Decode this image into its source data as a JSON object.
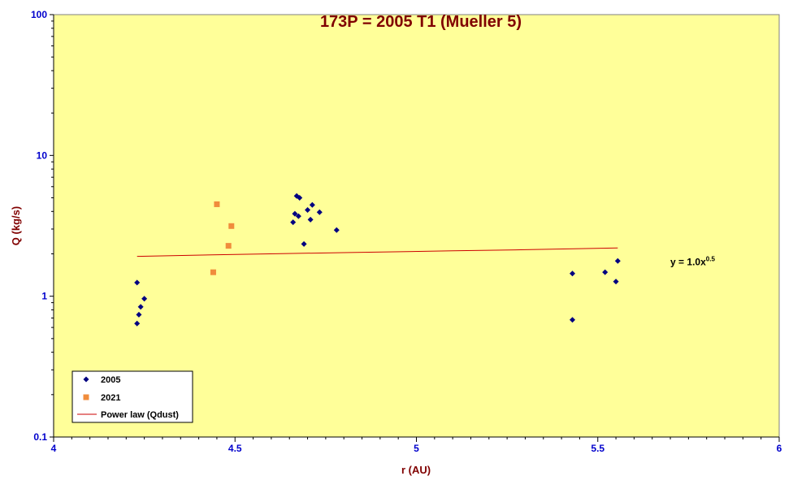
{
  "chart_data": {
    "type": "scatter",
    "title": "173P = 2005 T1 (Mueller 5)",
    "xlabel": "r (AU)",
    "ylabel": "Q (kg/s)",
    "xlim": [
      4,
      6
    ],
    "ylim": [
      0.1,
      100
    ],
    "yscale": "log",
    "x_ticks": [
      4,
      4.5,
      5,
      5.5,
      6
    ],
    "x_tick_labels": [
      "4",
      "4.5",
      "5",
      "5.5",
      "6"
    ],
    "y_ticks": [
      0.1,
      1,
      10,
      100
    ],
    "y_tick_labels": [
      "0.1",
      "1",
      "10",
      "100"
    ],
    "grid": false,
    "legend_position": "bottom-left",
    "colors": {
      "plot_background": "#ffff99",
      "outer_background": "#ffffff",
      "series_2005": "#000080",
      "series_2021": "#f08c3c",
      "power_law": "#cc0000",
      "tick_labels": "#0000cc",
      "title": "#800000"
    },
    "series": [
      {
        "name": "2005",
        "marker": "diamond",
        "points": [
          [
            4.23,
            1.25
          ],
          [
            4.23,
            0.64
          ],
          [
            4.235,
            0.74
          ],
          [
            4.24,
            0.84
          ],
          [
            4.25,
            0.96
          ],
          [
            4.66,
            3.35
          ],
          [
            4.665,
            3.85
          ],
          [
            4.67,
            5.15
          ],
          [
            4.675,
            3.7
          ],
          [
            4.678,
            5.0
          ],
          [
            4.69,
            2.35
          ],
          [
            4.7,
            4.1
          ],
          [
            4.708,
            3.5
          ],
          [
            4.713,
            4.45
          ],
          [
            4.733,
            3.95
          ],
          [
            4.78,
            2.95
          ],
          [
            5.43,
            1.45
          ],
          [
            5.43,
            0.68
          ],
          [
            5.52,
            1.48
          ],
          [
            5.55,
            1.27
          ],
          [
            5.555,
            1.78
          ]
        ]
      },
      {
        "name": "2021",
        "marker": "square",
        "points": [
          [
            4.44,
            1.48
          ],
          [
            4.45,
            4.5
          ],
          [
            4.482,
            2.28
          ],
          [
            4.49,
            3.15
          ]
        ]
      },
      {
        "name": "Power law (Qdust)",
        "marker": "line",
        "points": [
          [
            4.23,
            1.92
          ],
          [
            4.5,
            1.98
          ],
          [
            4.8,
            2.04
          ],
          [
            5.1,
            2.1
          ],
          [
            5.3,
            2.14
          ],
          [
            5.555,
            2.2
          ]
        ]
      }
    ],
    "annotations": [
      {
        "text": "y = 1.0x",
        "superscript": "0.5",
        "x": 5.7,
        "y": 1.75
      }
    ]
  }
}
